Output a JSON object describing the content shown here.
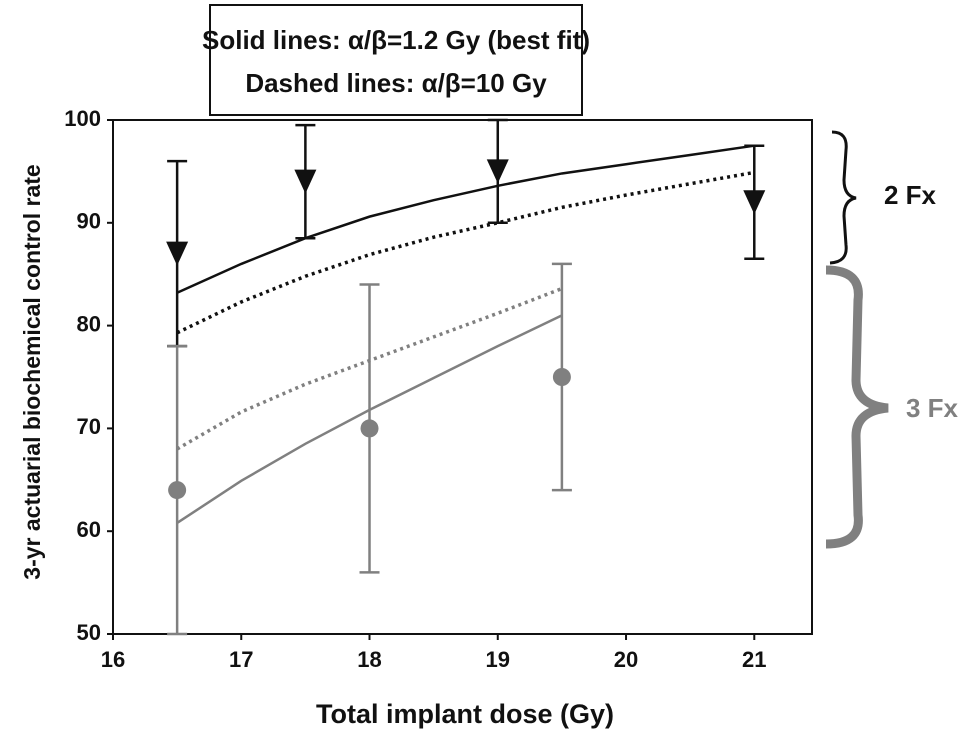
{
  "chart_data": {
    "type": "scatter",
    "legend_box": [
      "Solid lines: α/β=1.2 Gy (best fit)",
      "Dashed lines: α/β=10 Gy"
    ],
    "x_label": "Total implant dose (Gy)",
    "y_label": "3-yr actuarial biochemical control rate",
    "group_labels": [
      "2 Fx",
      "3 Fx"
    ],
    "xlim": [
      16,
      21.45
    ],
    "ylim": [
      50,
      100
    ],
    "xticks": [
      16,
      17,
      18,
      19,
      20,
      21
    ],
    "yticks": [
      50,
      60,
      70,
      80,
      90,
      100
    ],
    "series": [
      {
        "kind": "line",
        "style": "solid",
        "color": "#111111",
        "x": [
          16.5,
          17,
          17.5,
          18,
          18.5,
          19,
          19.5,
          20,
          20.5,
          21
        ],
        "values": [
          83.2,
          86,
          88.5,
          90.6,
          92.2,
          93.6,
          94.8,
          95.7,
          96.6,
          97.5
        ]
      },
      {
        "kind": "line",
        "style": "dotted",
        "color": "#111111",
        "x": [
          16.5,
          17,
          17.5,
          18,
          18.5,
          19,
          19.5,
          20,
          20.5,
          21
        ],
        "values": [
          79.3,
          82.3,
          84.8,
          86.9,
          88.6,
          90,
          91.5,
          92.7,
          93.8,
          94.9
        ]
      },
      {
        "kind": "line",
        "style": "solid",
        "color": "#808080",
        "x": [
          16.5,
          17,
          17.5,
          18,
          18.5,
          19,
          19.5
        ],
        "values": [
          60.8,
          64.9,
          68.5,
          71.8,
          74.9,
          78,
          81
        ]
      },
      {
        "kind": "line",
        "style": "dotted",
        "color": "#808080",
        "x": [
          16.5,
          17,
          17.5,
          18,
          18.5,
          19,
          19.5
        ],
        "values": [
          68,
          71.6,
          74.3,
          76.6,
          78.9,
          81.2,
          83.6
        ]
      },
      {
        "kind": "points",
        "marker": "triangle",
        "color": "#111111",
        "x": [
          16.5,
          17.5,
          19,
          21
        ],
        "values": [
          87,
          94,
          95,
          92
        ],
        "error_low": [
          78,
          88.5,
          90,
          86.5
        ],
        "error_high": [
          96,
          99.5,
          100,
          97.5
        ]
      },
      {
        "kind": "points",
        "marker": "circle",
        "color": "#808080",
        "x": [
          16.5,
          18,
          19.5
        ],
        "values": [
          64,
          70,
          75
        ],
        "error_low": [
          50,
          56,
          64
        ],
        "error_high": [
          78,
          84,
          86
        ]
      }
    ]
  }
}
